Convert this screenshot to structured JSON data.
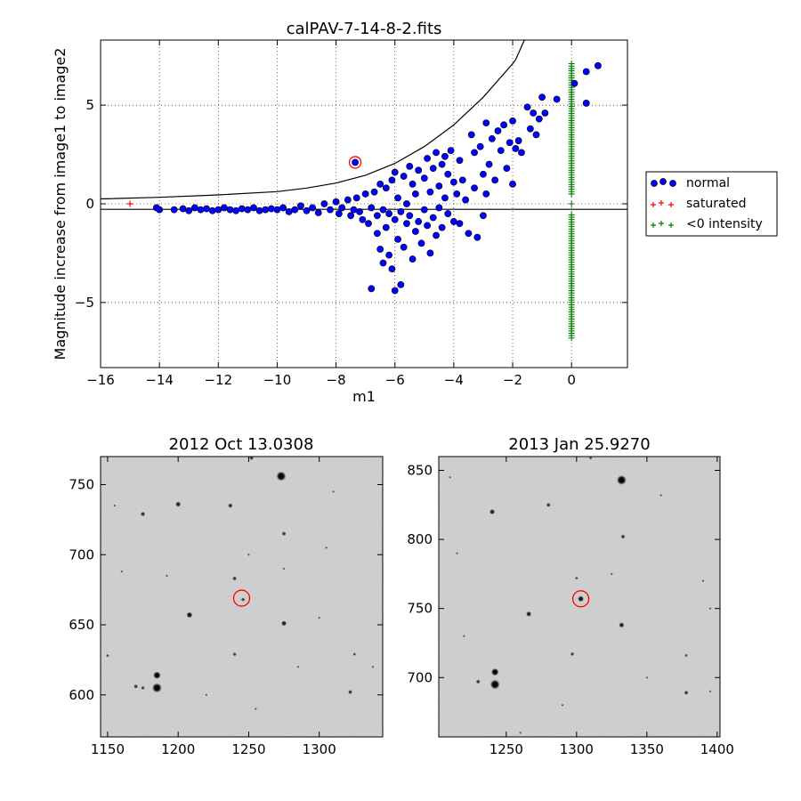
{
  "chart_data": [
    {
      "type": "scatter",
      "title": "calPAV-7-14-8-2.fits",
      "xlabel": "m1",
      "ylabel": "Magnitude increase from image1 to image2",
      "xlim": [
        -16,
        1.9
      ],
      "ylim": [
        -8.3,
        8.3
      ],
      "xticks": [
        -16,
        -14,
        -12,
        -10,
        -8,
        -6,
        -4,
        -2,
        0
      ],
      "yticks": [
        -5,
        0,
        5
      ],
      "grid": true,
      "legend_position": "outside-right",
      "highlight_point": {
        "x": -7.35,
        "y": 2.1
      },
      "threshold_curve": [
        [
          -16,
          0.25
        ],
        [
          -14,
          0.33
        ],
        [
          -12,
          0.45
        ],
        [
          -10,
          0.62
        ],
        [
          -9,
          0.8
        ],
        [
          -8,
          1.05
        ],
        [
          -7,
          1.45
        ],
        [
          -6,
          2.05
        ],
        [
          -5,
          2.9
        ],
        [
          -4,
          4.0
        ],
        [
          -3,
          5.4
        ],
        [
          -2,
          7.1
        ],
        [
          -1.9,
          7.3
        ],
        [
          -1.6,
          8.3
        ]
      ],
      "lower_line_y": -0.28,
      "series": [
        {
          "name": "normal",
          "color": "#0000ff",
          "marker": "circle",
          "points": [
            [
              -14.1,
              -0.2
            ],
            [
              -14.0,
              -0.3
            ],
            [
              -13.5,
              -0.3
            ],
            [
              -13.2,
              -0.25
            ],
            [
              -13.0,
              -0.35
            ],
            [
              -12.8,
              -0.2
            ],
            [
              -12.6,
              -0.3
            ],
            [
              -12.4,
              -0.25
            ],
            [
              -12.2,
              -0.35
            ],
            [
              -12.0,
              -0.3
            ],
            [
              -11.8,
              -0.2
            ],
            [
              -11.6,
              -0.3
            ],
            [
              -11.4,
              -0.35
            ],
            [
              -11.2,
              -0.25
            ],
            [
              -11.0,
              -0.3
            ],
            [
              -10.8,
              -0.2
            ],
            [
              -10.6,
              -0.35
            ],
            [
              -10.4,
              -0.3
            ],
            [
              -10.2,
              -0.25
            ],
            [
              -10.0,
              -0.3
            ],
            [
              -9.8,
              -0.2
            ],
            [
              -9.6,
              -0.4
            ],
            [
              -9.4,
              -0.3
            ],
            [
              -9.2,
              -0.1
            ],
            [
              -9.0,
              -0.35
            ],
            [
              -8.8,
              -0.2
            ],
            [
              -8.6,
              -0.45
            ],
            [
              -8.4,
              0.0
            ],
            [
              -8.2,
              -0.3
            ],
            [
              -8.0,
              0.1
            ],
            [
              -7.9,
              -0.5
            ],
            [
              -7.8,
              -0.2
            ],
            [
              -7.6,
              0.2
            ],
            [
              -7.5,
              -0.6
            ],
            [
              -7.4,
              -0.3
            ],
            [
              -7.35,
              2.1
            ],
            [
              -7.3,
              0.3
            ],
            [
              -7.2,
              -0.4
            ],
            [
              -7.1,
              -0.8
            ],
            [
              -7.0,
              0.5
            ],
            [
              -6.9,
              -1.0
            ],
            [
              -6.8,
              -0.2
            ],
            [
              -6.8,
              -4.3
            ],
            [
              -6.7,
              0.6
            ],
            [
              -6.6,
              -0.6
            ],
            [
              -6.6,
              -1.5
            ],
            [
              -6.5,
              1.0
            ],
            [
              -6.5,
              -2.3
            ],
            [
              -6.4,
              -0.3
            ],
            [
              -6.4,
              -3.0
            ],
            [
              -6.3,
              0.8
            ],
            [
              -6.3,
              -1.2
            ],
            [
              -6.2,
              -0.5
            ],
            [
              -6.2,
              -2.6
            ],
            [
              -6.1,
              1.2
            ],
            [
              -6.1,
              -3.3
            ],
            [
              -6.0,
              -0.8
            ],
            [
              -6.0,
              -4.4
            ],
            [
              -6.0,
              1.6
            ],
            [
              -5.9,
              0.3
            ],
            [
              -5.9,
              -1.8
            ],
            [
              -5.8,
              -0.4
            ],
            [
              -5.8,
              -4.1
            ],
            [
              -5.7,
              1.4
            ],
            [
              -5.7,
              -2.2
            ],
            [
              -5.6,
              0.0
            ],
            [
              -5.6,
              -1.0
            ],
            [
              -5.5,
              1.9
            ],
            [
              -5.5,
              -0.6
            ],
            [
              -5.4,
              -2.8
            ],
            [
              -5.4,
              1.0
            ],
            [
              -5.3,
              -1.4
            ],
            [
              -5.3,
              0.5
            ],
            [
              -5.2,
              1.7
            ],
            [
              -5.2,
              -0.9
            ],
            [
              -5.1,
              -2.0
            ],
            [
              -5.0,
              1.3
            ],
            [
              -5.0,
              -0.3
            ],
            [
              -4.9,
              2.3
            ],
            [
              -4.9,
              -1.1
            ],
            [
              -4.8,
              0.6
            ],
            [
              -4.8,
              -2.5
            ],
            [
              -4.7,
              1.8
            ],
            [
              -4.7,
              -0.7
            ],
            [
              -4.6,
              2.6
            ],
            [
              -4.6,
              -1.6
            ],
            [
              -4.5,
              0.9
            ],
            [
              -4.5,
              -0.2
            ],
            [
              -4.4,
              2.0
            ],
            [
              -4.4,
              -1.2
            ],
            [
              -4.3,
              2.4
            ],
            [
              -4.3,
              0.3
            ],
            [
              -4.2,
              1.5
            ],
            [
              -4.2,
              -0.5
            ],
            [
              -4.1,
              2.7
            ],
            [
              -4.0,
              1.1
            ],
            [
              -4.0,
              -0.9
            ],
            [
              -3.9,
              0.5
            ],
            [
              -3.8,
              2.2
            ],
            [
              -3.8,
              -1.0
            ],
            [
              -3.7,
              1.2
            ],
            [
              -3.6,
              0.2
            ],
            [
              -3.5,
              -1.5
            ],
            [
              -3.4,
              3.5
            ],
            [
              -3.3,
              2.6
            ],
            [
              -3.3,
              0.8
            ],
            [
              -3.2,
              -1.7
            ],
            [
              -3.1,
              2.9
            ],
            [
              -3.0,
              1.5
            ],
            [
              -3.0,
              -0.6
            ],
            [
              -2.9,
              4.1
            ],
            [
              -2.9,
              0.5
            ],
            [
              -2.8,
              2.0
            ],
            [
              -2.7,
              3.3
            ],
            [
              -2.6,
              1.2
            ],
            [
              -2.5,
              3.7
            ],
            [
              -2.4,
              2.7
            ],
            [
              -2.3,
              4.0
            ],
            [
              -2.2,
              1.8
            ],
            [
              -2.1,
              3.1
            ],
            [
              -2.0,
              1.0
            ],
            [
              -2.0,
              4.2
            ],
            [
              -1.9,
              2.8
            ],
            [
              -1.8,
              3.2
            ],
            [
              -1.7,
              2.6
            ],
            [
              -1.5,
              4.9
            ],
            [
              -1.4,
              3.8
            ],
            [
              -1.3,
              4.6
            ],
            [
              -1.2,
              3.5
            ],
            [
              -1.1,
              4.3
            ],
            [
              -1.0,
              5.4
            ],
            [
              -0.9,
              4.6
            ],
            [
              -0.5,
              5.3
            ],
            [
              0.1,
              6.1
            ],
            [
              0.5,
              6.7
            ],
            [
              0.5,
              5.1
            ],
            [
              0.9,
              7.0
            ]
          ]
        },
        {
          "name": "saturated",
          "color": "#ff0000",
          "marker": "plus",
          "points": [
            [
              -15.0,
              0.0
            ]
          ]
        },
        {
          "name": "<0 intensity",
          "color": "#008000",
          "marker": "plus",
          "x": 0.0,
          "y_ranges": [
            [
              0.5,
              7.1
            ],
            [
              -6.8,
              -0.5
            ]
          ],
          "y_extra": [
            0.0
          ]
        }
      ]
    },
    {
      "type": "image",
      "title": "2012 Oct 13.0308",
      "xlim": [
        1145,
        1345
      ],
      "ylim": [
        570,
        770
      ],
      "xticks": [
        1150,
        1200,
        1250,
        1300
      ],
      "yticks": [
        600,
        650,
        700,
        750
      ],
      "target": [
        1245,
        669
      ],
      "stars": [
        [
          1273,
          756,
          4.5
        ],
        [
          1200,
          736,
          2.5
        ],
        [
          1237,
          735,
          2.2
        ],
        [
          1175,
          729,
          2.2
        ],
        [
          1252,
          769,
          2
        ],
        [
          1275,
          715,
          2
        ],
        [
          1208,
          657,
          2.8
        ],
        [
          1275,
          651,
          2.5
        ],
        [
          1240,
          683,
          2
        ],
        [
          1246,
          668,
          1.8
        ],
        [
          1185,
          614,
          3.5
        ],
        [
          1185,
          605,
          4.5
        ],
        [
          1170,
          606,
          2
        ],
        [
          1175,
          605,
          1.8
        ],
        [
          1240,
          629,
          1.8
        ],
        [
          1322,
          602,
          2
        ],
        [
          1325,
          629,
          1.5
        ],
        [
          1192,
          685,
          1.2
        ],
        [
          1160,
          688,
          1.2
        ],
        [
          1275,
          690,
          1.2
        ],
        [
          1305,
          705,
          1.2
        ],
        [
          1310,
          745,
          1.2
        ],
        [
          1285,
          620,
          1.2
        ],
        [
          1220,
          600,
          1.2
        ],
        [
          1150,
          628,
          1.5
        ],
        [
          1338,
          620,
          1.2
        ],
        [
          1250,
          700,
          1.2
        ],
        [
          1300,
          655,
          1.2
        ],
        [
          1255,
          590,
          1.2
        ],
        [
          1155,
          735,
          1.2
        ]
      ]
    },
    {
      "type": "image",
      "title": "2013 Jan 25.9270",
      "xlim": [
        1202,
        1402
      ],
      "ylim": [
        657,
        860
      ],
      "xticks": [
        1250,
        1300,
        1350,
        1400
      ],
      "yticks": [
        700,
        750,
        800,
        850
      ],
      "target": [
        1303,
        757
      ],
      "stars": [
        [
          1332,
          843,
          4.5
        ],
        [
          1240,
          820,
          2.5
        ],
        [
          1280,
          825,
          2
        ],
        [
          1333,
          802,
          2
        ],
        [
          1303,
          757,
          2.8
        ],
        [
          1266,
          746,
          2.5
        ],
        [
          1332,
          738,
          2.5
        ],
        [
          1242,
          704,
          3.5
        ],
        [
          1242,
          695,
          4.5
        ],
        [
          1230,
          697,
          2
        ],
        [
          1297,
          717,
          1.8
        ],
        [
          1378,
          716,
          1.5
        ],
        [
          1378,
          689,
          2
        ],
        [
          1300,
          772,
          1.5
        ],
        [
          1360,
          832,
          1.2
        ],
        [
          1310,
          859,
          1.5
        ],
        [
          1390,
          770,
          1.2
        ],
        [
          1215,
          790,
          1.2
        ],
        [
          1260,
          660,
          1.2
        ],
        [
          1350,
          700,
          1.2
        ],
        [
          1395,
          750,
          1.2
        ],
        [
          1220,
          730,
          1.2
        ],
        [
          1290,
          680,
          1.2
        ],
        [
          1325,
          775,
          1.2
        ],
        [
          1395,
          690,
          1.2
        ],
        [
          1210,
          845,
          1.2
        ]
      ]
    }
  ]
}
